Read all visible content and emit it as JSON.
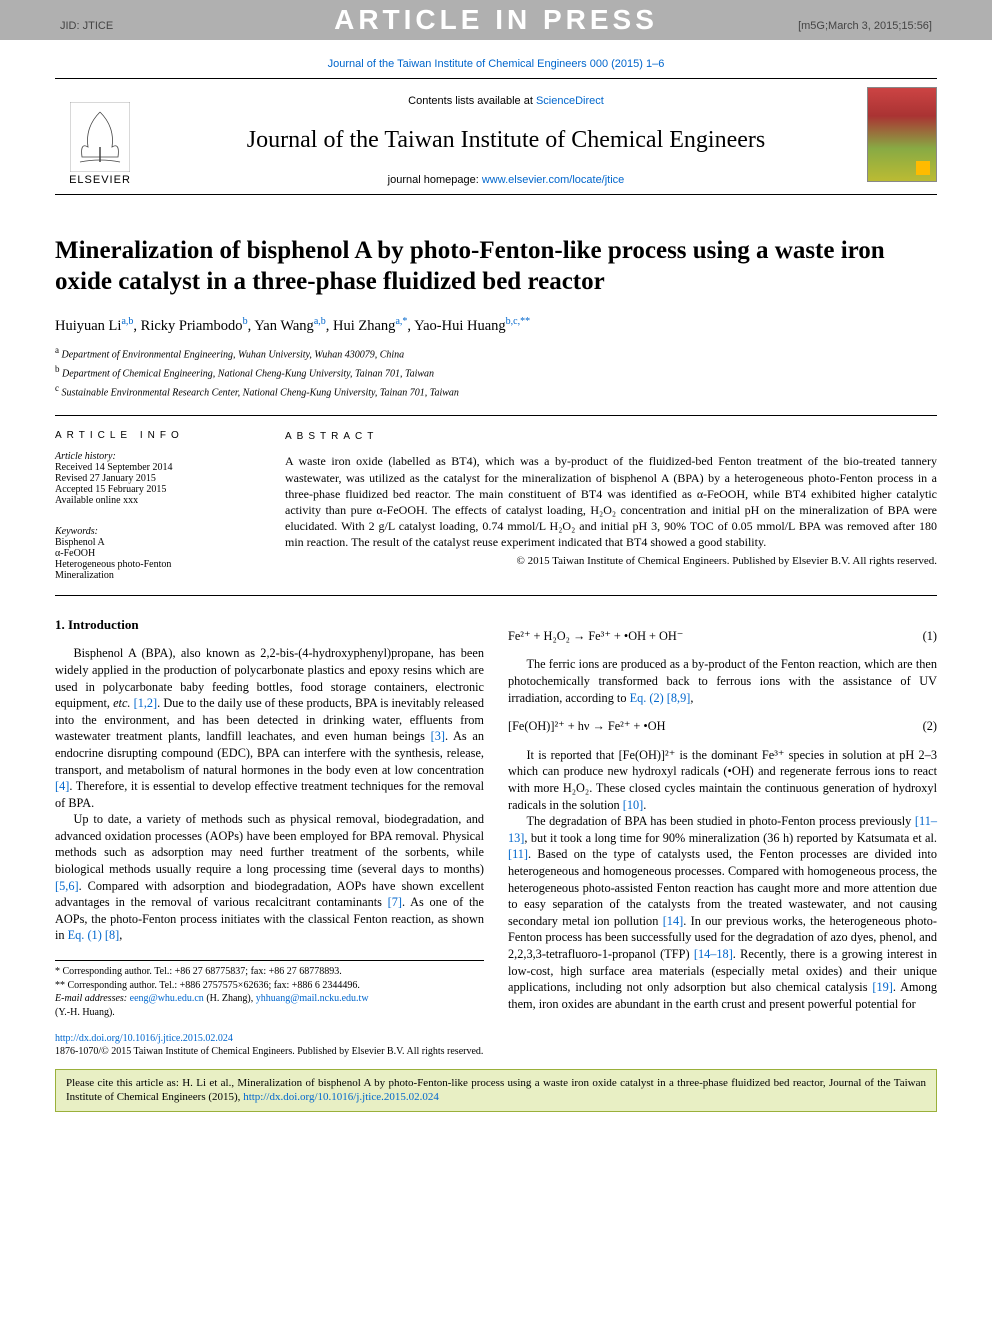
{
  "banner": {
    "article_in_press": "ARTICLE IN PRESS",
    "jid": "JID: JTICE",
    "timestamp": "[m5G;March 3, 2015;15:56]"
  },
  "citation_top": "Journal of the Taiwan Institute of Chemical Engineers 000 (2015) 1–6",
  "header": {
    "contents_prefix": "Contents lists available at ",
    "contents_link": "ScienceDirect",
    "journal_name": "Journal of the Taiwan Institute of Chemical Engineers",
    "homepage_prefix": "journal homepage: ",
    "homepage_link": "www.elsevier.com/locate/jtice",
    "elsevier": "ELSEVIER"
  },
  "title": "Mineralization of bisphenol A by photo-Fenton-like process using a waste iron oxide catalyst in a three-phase fluidized bed reactor",
  "authors_html": "Huiyuan Li<sup>a,b</sup>, Ricky Priambodo<sup>b</sup>, Yan Wang<sup>a,b</sup>, Hui Zhang<sup>a,*</sup>, Yao-Hui Huang<sup>b,c,**</sup>",
  "affiliations": [
    "a Department of Environmental Engineering, Wuhan University, Wuhan 430079, China",
    "b Department of Chemical Engineering, National Cheng-Kung University, Tainan 701, Taiwan",
    "c Sustainable Environmental Research Center, National Cheng-Kung University, Tainan 701, Taiwan"
  ],
  "article_info": {
    "heading": "ARTICLE INFO",
    "history_label": "Article history:",
    "received": "Received 14 September 2014",
    "revised": "Revised 27 January 2015",
    "accepted": "Accepted 15 February 2015",
    "online": "Available online xxx",
    "kw_label": "Keywords:",
    "keywords": [
      "Bisphenol A",
      "α-FeOOH",
      "Heterogeneous photo-Fenton",
      "Mineralization"
    ]
  },
  "abstract": {
    "heading": "ABSTRACT",
    "text": "A waste iron oxide (labelled as BT4), which was a by-product of the fluidized-bed Fenton treatment of the bio-treated tannery wastewater, was utilized as the catalyst for the mineralization of bisphenol A (BPA) by a heterogeneous photo-Fenton process in a three-phase fluidized bed reactor. The main constituent of BT4 was identified as α-FeOOH, while BT4 exhibited higher catalytic activity than pure α-FeOOH. The effects of catalyst loading, H₂O₂ concentration and initial pH on the mineralization of BPA were elucidated. With 2 g/L catalyst loading, 0.74 mmol/L H₂O₂ and initial pH 3, 90% TOC of 0.05 mmol/L BPA was removed after 180 min reaction. The result of the catalyst reuse experiment indicated that BT4 showed a good stability.",
    "copyright": "© 2015 Taiwan Institute of Chemical Engineers. Published by Elsevier B.V. All rights reserved."
  },
  "body": {
    "intro_heading": "1. Introduction",
    "p1": "Bisphenol A (BPA), also known as 2,2-bis-(4-hydroxyphenyl)propane, has been widely applied in the production of polycarbonate plastics and epoxy resins which are used in polycarbonate baby feeding bottles, food storage containers, electronic equipment, etc. [1,2]. Due to the daily use of these products, BPA is inevitably released into the environment, and has been detected in drinking water, effluents from wastewater treatment plants, landfill leachates, and even human beings [3]. As an endocrine disrupting compound (EDC), BPA can interfere with the synthesis, release, transport, and metabolism of natural hormones in the body even at low concentration [4]. Therefore, it is essential to develop effective treatment techniques for the removal of BPA.",
    "p2": "Up to date, a variety of methods such as physical removal, biodegradation, and advanced oxidation processes (AOPs) have been employed for BPA removal. Physical methods such as adsorption may need further treatment of the sorbents, while biological methods usually require a long processing time (several days to months) [5,6]. Compared with adsorption and biodegradation, AOPs have shown excellent advantages in the removal of various recalcitrant contaminants [7]. As one of the AOPs, the photo-Fenton process initiates with the classical Fenton reaction, as shown in Eq. (1) [8],",
    "eq1": "Fe²⁺ + H₂O₂ → Fe³⁺ + •OH + OH⁻",
    "eq1_num": "(1)",
    "p3": "The ferric ions are produced as a by-product of the Fenton reaction, which are then photochemically transformed back to ferrous ions with the assistance of UV irradiation, according to Eq. (2) [8,9],",
    "eq2": "[Fe(OH)]²⁺ + hν → Fe²⁺ + •OH",
    "eq2_num": "(2)",
    "p4": "It is reported that [Fe(OH)]²⁺ is the dominant Fe³⁺ species in solution at pH 2–3 which can produce new hydroxyl radicals (•OH) and regenerate ferrous ions to react with more H₂O₂. These closed cycles maintain the continuous generation of hydroxyl radicals in the solution [10].",
    "p5": "The degradation of BPA has been studied in photo-Fenton process previously [11–13], but it took a long time for 90% mineralization (36 h) reported by Katsumata et al. [11]. Based on the type of catalysts used, the Fenton processes are divided into heterogeneous and homogeneous processes. Compared with homogeneous process, the heterogeneous photo-assisted Fenton reaction has caught more and more attention due to easy separation of the catalysts from the treated wastewater, and not causing secondary metal ion pollution [14]. In our previous works, the heterogeneous photo-Fenton process has been successfully used for the degradation of azo dyes, phenol, and 2,2,3,3-tetrafluoro-1-propanol (TFP) [14–18]. Recently, there is a growing interest in low-cost, high surface area materials (especially metal oxides) and their unique applications, including not only adsorption but also chemical catalysis [19]. Among them, iron oxides are abundant in the earth crust and present powerful potential for"
  },
  "footnotes": {
    "c1": "* Corresponding author. Tel.: +86 27 68775837; fax: +86 27 68778893.",
    "c2": "** Corresponding author. Tel.: +886 2757575×62636; fax: +886 6 2344496.",
    "emails_prefix": "E-mail addresses: ",
    "email1": "eeng@whu.edu.cn",
    "email1_who": " (H. Zhang), ",
    "email2": "yhhuang@mail.ncku.edu.tw",
    "email2_who": "(Y.-H. Huang)."
  },
  "doi": {
    "url": "http://dx.doi.org/10.1016/j.jtice.2015.02.024",
    "copyright": "1876-1070/© 2015 Taiwan Institute of Chemical Engineers. Published by Elsevier B.V. All rights reserved."
  },
  "cite_box": {
    "text_prefix": "Please cite this article as: H. Li et al., Mineralization of bisphenol A by photo-Fenton-like process using a waste iron oxide catalyst in a three-phase fluidized bed reactor, Journal of the Taiwan Institute of Chemical Engineers (2015), ",
    "link": "http://dx.doi.org/10.1016/j.jtice.2015.02.024"
  },
  "colors": {
    "link": "#0066cc",
    "banner_bg": "#b0b0b0",
    "cite_bg": "#e8efc4",
    "cite_border": "#9ab03a"
  }
}
